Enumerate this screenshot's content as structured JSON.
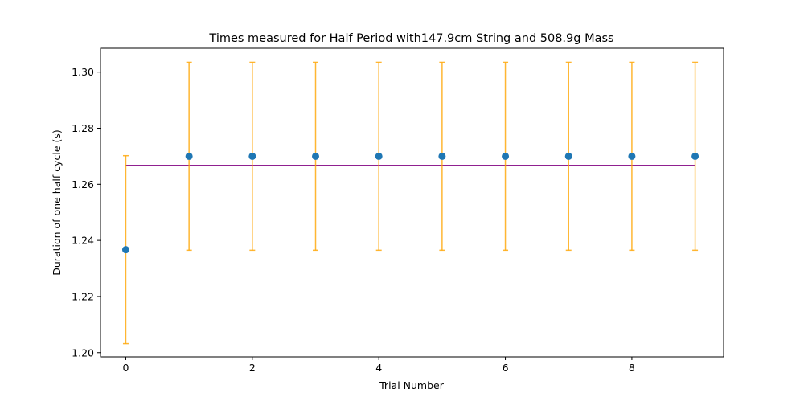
{
  "chart_data": {
    "type": "scatter",
    "title": "Times measured for Half Period with147.9cm String and 508.9g Mass",
    "xlabel": "Trial Number",
    "ylabel": "Duration of one half cycle (s)",
    "xlim": [
      -0.4,
      9.45
    ],
    "ylim": [
      1.1985,
      1.3085
    ],
    "xticks": [
      0,
      2,
      4,
      6,
      8
    ],
    "xtick_labels": [
      "0",
      "2",
      "4",
      "6",
      "8"
    ],
    "yticks": [
      1.2,
      1.22,
      1.24,
      1.26,
      1.28,
      1.3
    ],
    "ytick_labels": [
      "1.20",
      "1.22",
      "1.24",
      "1.26",
      "1.28",
      "1.30"
    ],
    "grid": false,
    "series": [
      {
        "x": [
          0,
          1,
          2,
          3,
          4,
          5,
          6,
          7,
          8,
          9
        ],
        "y": [
          1.2367,
          1.27,
          1.27,
          1.27,
          1.27,
          1.27,
          1.27,
          1.27,
          1.27,
          1.27
        ],
        "yerr": [
          0.0335,
          0.0335,
          0.0335,
          0.0335,
          0.0335,
          0.0335,
          0.0335,
          0.0335,
          0.0335,
          0.0335
        ],
        "color": "#1f77b4",
        "errorbar_color": "#ffa500"
      }
    ],
    "mean_line": {
      "y": 1.2667,
      "x_range": [
        0,
        9
      ],
      "color": "#800080"
    }
  }
}
